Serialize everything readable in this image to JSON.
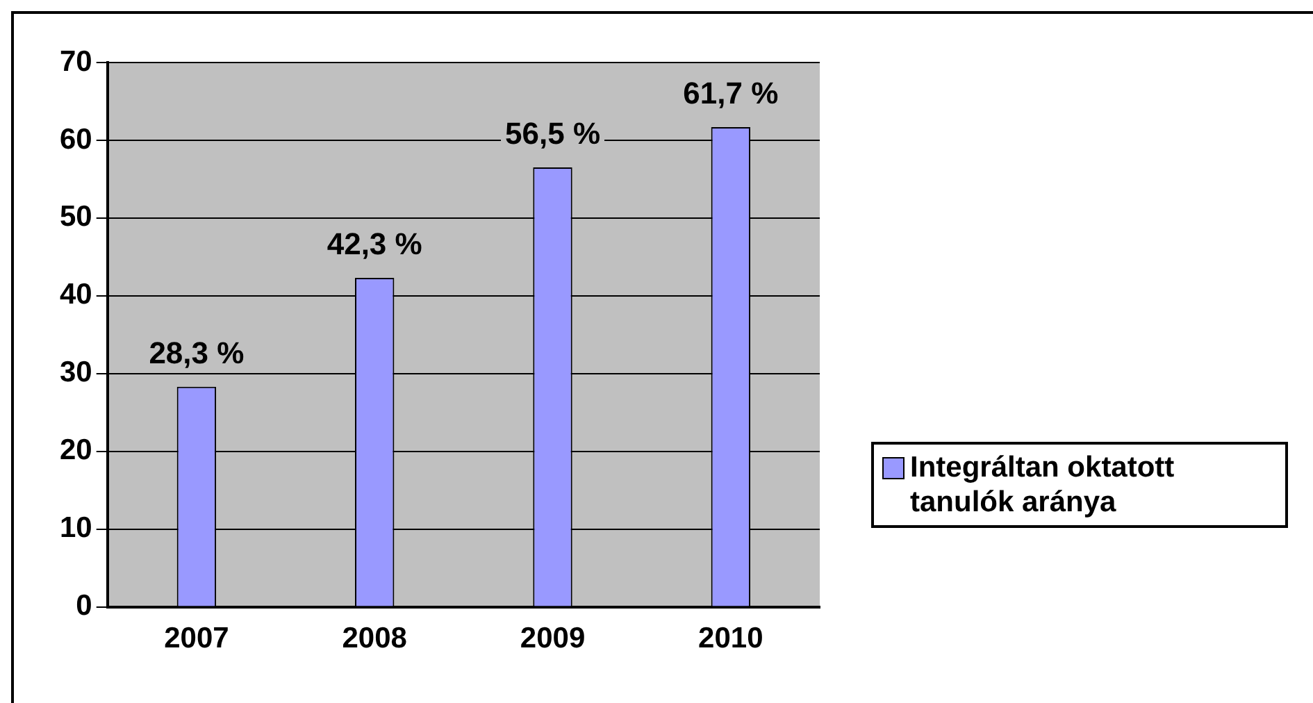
{
  "chart_data": {
    "type": "bar",
    "categories": [
      "2007",
      "2008",
      "2009",
      "2010"
    ],
    "series": [
      {
        "name": "Integráltan oktatott tanulók aránya",
        "color": "#9999ff",
        "values": [
          28.3,
          42.3,
          56.5,
          61.7
        ],
        "value_labels": [
          "28,3 %",
          "42,3 %",
          "56,5 %",
          "61,7 %"
        ]
      }
    ],
    "ylim": [
      0,
      70
    ],
    "yticks": [
      0,
      10,
      20,
      30,
      40,
      50,
      60,
      70
    ],
    "grid": "y",
    "legend": "right"
  }
}
